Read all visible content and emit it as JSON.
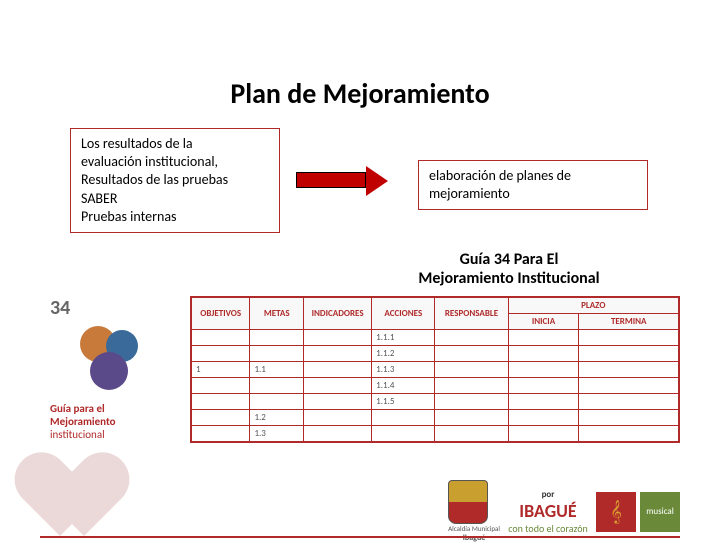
{
  "title": "Plan de Mejoramiento",
  "box1_lines": [
    "Los resultados de la",
    "evaluación institucional,",
    "Resultados de las pruebas",
    "SABER",
    "Pruebas internas"
  ],
  "box2_lines": [
    "elaboración de planes de",
    "mejoramiento"
  ],
  "box3_lines": [
    "Guía 34 Para El",
    "Mejoramiento Institucional"
  ],
  "guia": {
    "number": "34",
    "label_lines": [
      "Guía para el",
      "Mejoramiento",
      "institucional"
    ]
  },
  "table": {
    "headers": [
      "OBJETIVOS",
      "METAS",
      "INDICADORES",
      "ACCIONES",
      "RESPONSABLE",
      "PLAZO"
    ],
    "sub_headers": [
      "INICIA",
      "TERMINA"
    ],
    "col_widths": [
      "12%",
      "11%",
      "14%",
      "13%",
      "15%",
      "35%"
    ],
    "rows": [
      {
        "obj": "",
        "meta": "",
        "ind": "",
        "acc": "1.1.1",
        "resp": "",
        "ini": "",
        "ter": ""
      },
      {
        "obj": "",
        "meta": "",
        "ind": "",
        "acc": "1.1.2",
        "resp": "",
        "ini": "",
        "ter": ""
      },
      {
        "obj": "1",
        "meta": "1.1",
        "ind": "",
        "acc": "1.1.3",
        "resp": "",
        "ini": "",
        "ter": ""
      },
      {
        "obj": "",
        "meta": "",
        "ind": "",
        "acc": "1.1.4",
        "resp": "",
        "ini": "",
        "ter": ""
      },
      {
        "obj": "",
        "meta": "",
        "ind": "",
        "acc": "1.1.5",
        "resp": "",
        "ini": "",
        "ter": ""
      },
      {
        "obj": "",
        "meta": "1.2",
        "ind": "",
        "acc": "",
        "resp": "",
        "ini": "",
        "ter": ""
      },
      {
        "obj": "",
        "meta": "1.3",
        "ind": "",
        "acc": "",
        "resp": "",
        "ini": "",
        "ter": ""
      }
    ]
  },
  "footer": {
    "alcaldia": "Alcaldía Municipal",
    "ibague": "Ibagué",
    "por": "por",
    "ibague_big": "IBAGUÉ",
    "slogan": "con todo el corazón",
    "musical": "musical"
  },
  "colors": {
    "accent": "#b02a2a",
    "arrow": "#c00000"
  }
}
